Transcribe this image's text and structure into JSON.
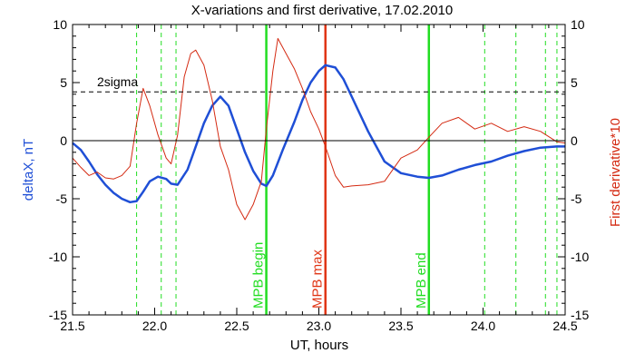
{
  "chart_data": {
    "type": "line",
    "title": "X-variations and first derivative, 17.02.2010",
    "xlabel": "UT, hours",
    "ylabel": "deltaX, nT",
    "ylabel_right": "First derivative*10",
    "xlim": [
      21.5,
      24.5
    ],
    "ylim": [
      -15,
      10
    ],
    "ylim_right": [
      -15,
      10
    ],
    "xticks": [
      "21.5",
      "22.0",
      "22.5",
      "23.0",
      "23.5",
      "24.0",
      "24.5"
    ],
    "yticks": [
      "10",
      "5",
      "0",
      "-5",
      "-10",
      "-15"
    ],
    "yticks_right": [
      "10",
      "5",
      "0",
      "-5",
      "-10",
      "-15"
    ],
    "grid": false,
    "colors": {
      "deltaX": "#1f4fd6",
      "derivative": "#d42a12",
      "mpb": "#22dd22",
      "mpb_max": "#e03515",
      "dashed": "#22dd22"
    },
    "threshold": {
      "value": 4.2,
      "label": "2sigma"
    },
    "zero_line": 0,
    "vertical_lines": [
      {
        "x": 22.68,
        "label": "MPB begin",
        "style": "solid",
        "color": "#22dd22"
      },
      {
        "x": 23.04,
        "label": "MPB max",
        "style": "solid",
        "color": "#e03515"
      },
      {
        "x": 23.67,
        "label": "MPB end",
        "style": "solid",
        "color": "#22dd22"
      }
    ],
    "dashed_lines": [
      21.89,
      22.04,
      22.13,
      24.01,
      24.2,
      24.38,
      24.45
    ],
    "series": [
      {
        "key": "deltaX",
        "axis": "left",
        "x": [
          21.5,
          21.55,
          21.6,
          21.65,
          21.7,
          21.75,
          21.8,
          21.85,
          21.89,
          21.93,
          21.97,
          22.02,
          22.07,
          22.1,
          22.14,
          22.2,
          22.25,
          22.3,
          22.35,
          22.4,
          22.45,
          22.5,
          22.55,
          22.6,
          22.65,
          22.68,
          22.72,
          22.78,
          22.85,
          22.9,
          22.95,
          23.0,
          23.04,
          23.1,
          23.15,
          23.2,
          23.3,
          23.4,
          23.5,
          23.6,
          23.67,
          23.75,
          23.85,
          23.95,
          24.05,
          24.15,
          24.25,
          24.35,
          24.45,
          24.5
        ],
        "y": [
          -0.2,
          -0.8,
          -1.8,
          -2.9,
          -3.8,
          -4.5,
          -5.0,
          -5.3,
          -5.2,
          -4.4,
          -3.5,
          -3.1,
          -3.3,
          -3.7,
          -3.8,
          -2.5,
          -0.5,
          1.5,
          3.0,
          3.8,
          3.0,
          1.0,
          -1.0,
          -2.6,
          -3.7,
          -3.9,
          -3.0,
          -0.8,
          1.6,
          3.5,
          5.0,
          6.0,
          6.5,
          6.3,
          5.3,
          3.8,
          0.8,
          -1.8,
          -2.8,
          -3.1,
          -3.2,
          -3.0,
          -2.5,
          -2.1,
          -1.8,
          -1.3,
          -0.9,
          -0.6,
          -0.5,
          -0.5
        ]
      },
      {
        "key": "derivative",
        "axis": "right",
        "x": [
          21.5,
          21.55,
          21.6,
          21.65,
          21.7,
          21.75,
          21.8,
          21.85,
          21.89,
          21.93,
          21.97,
          22.02,
          22.07,
          22.1,
          22.14,
          22.18,
          22.22,
          22.25,
          22.3,
          22.35,
          22.4,
          22.45,
          22.5,
          22.55,
          22.6,
          22.65,
          22.68,
          22.72,
          22.75,
          22.8,
          22.85,
          22.9,
          22.95,
          23.0,
          23.04,
          23.1,
          23.15,
          23.2,
          23.3,
          23.4,
          23.5,
          23.6,
          23.67,
          23.75,
          23.85,
          23.95,
          24.05,
          24.15,
          24.25,
          24.35,
          24.45,
          24.5
        ],
        "y": [
          -1.5,
          -2.3,
          -3.0,
          -2.7,
          -3.2,
          -3.3,
          -3.0,
          -2.2,
          1.5,
          4.5,
          3.0,
          0.5,
          -1.5,
          -2.0,
          0.5,
          5.5,
          7.5,
          7.8,
          6.5,
          3.5,
          -0.5,
          -2.5,
          -5.5,
          -6.8,
          -5.5,
          -3.5,
          1.0,
          6.0,
          8.8,
          7.5,
          6.2,
          4.5,
          2.5,
          1.0,
          -0.5,
          -3.0,
          -4.0,
          -3.9,
          -3.8,
          -3.5,
          -1.5,
          -0.8,
          0.3,
          1.5,
          2.0,
          1.0,
          1.5,
          0.8,
          1.2,
          0.8,
          -0.1,
          -0.2
        ]
      }
    ]
  }
}
